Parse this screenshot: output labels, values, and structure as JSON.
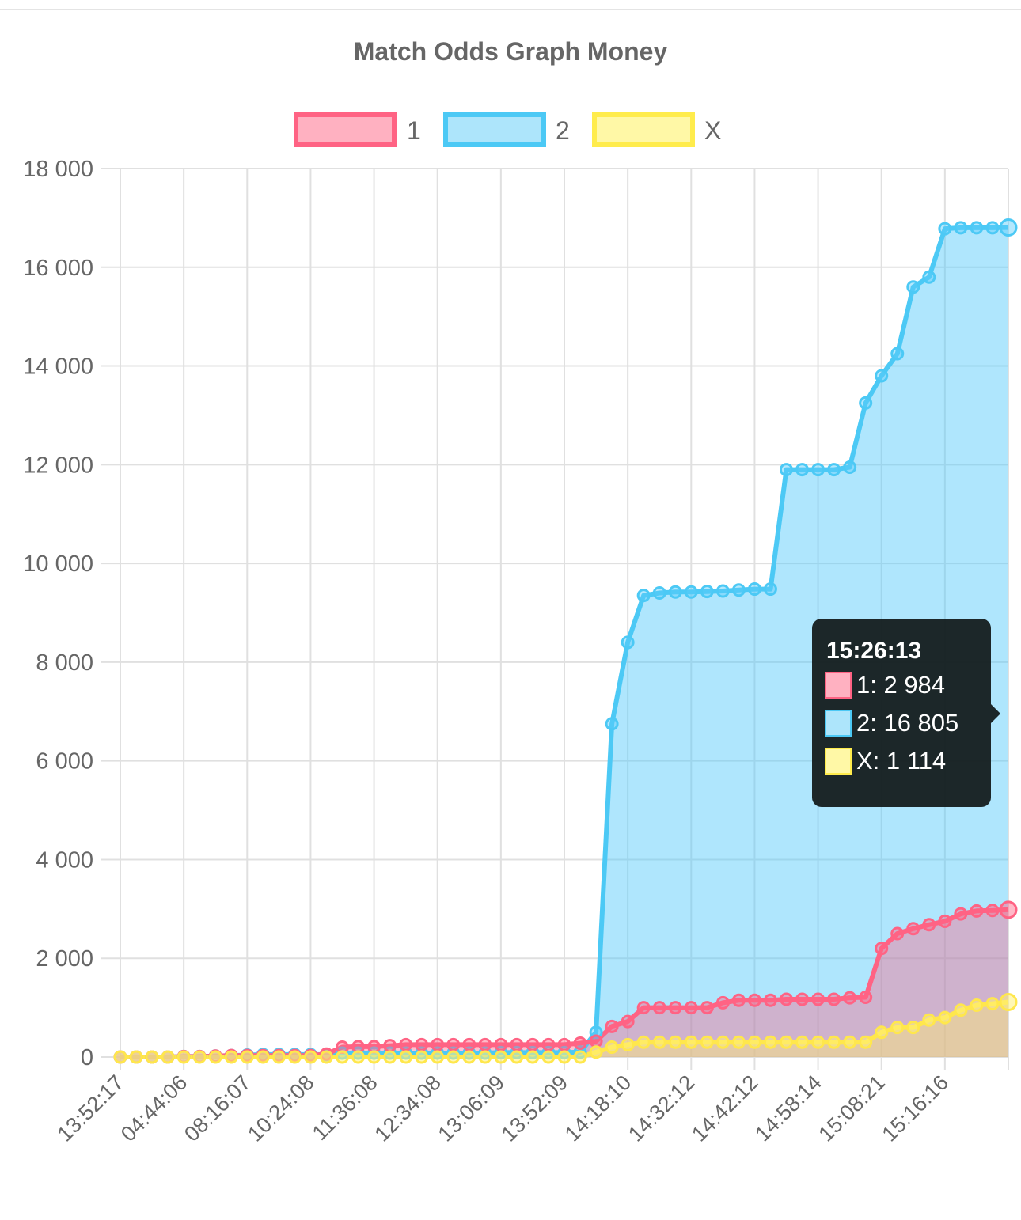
{
  "chart_data": {
    "type": "area",
    "title": "Match Odds Graph Money",
    "legend_position": "top-center",
    "grid": true,
    "ylim": [
      0,
      18000
    ],
    "y_ticks": [
      0,
      2000,
      4000,
      6000,
      8000,
      10000,
      12000,
      14000,
      16000,
      18000
    ],
    "y_tick_labels": [
      "0",
      "2 000",
      "4 000",
      "6 000",
      "8 000",
      "10 000",
      "12 000",
      "14 000",
      "16 000",
      "18 000"
    ],
    "x_tick_labels": [
      "13:52:17",
      "04:44:06",
      "08:16:07",
      "10:24:08",
      "11:36:08",
      "12:34:08",
      "13:06:09",
      "13:52:09",
      "14:18:10",
      "14:32:12",
      "14:42:12",
      "14:58:14",
      "15:08:21",
      "15:16:16"
    ],
    "point_count": 57,
    "series": [
      {
        "name": "1",
        "line_color": "#ff6384",
        "fill_color": "rgba(255, 99, 132, 0.45)",
        "values": [
          0,
          0,
          0,
          0,
          10,
          10,
          20,
          30,
          30,
          30,
          30,
          30,
          30,
          60,
          200,
          210,
          210,
          230,
          250,
          250,
          250,
          250,
          250,
          250,
          250,
          250,
          250,
          250,
          250,
          280,
          320,
          620,
          720,
          1000,
          1000,
          1000,
          1000,
          1000,
          1100,
          1150,
          1150,
          1150,
          1170,
          1170,
          1170,
          1170,
          1200,
          1210,
          2200,
          2500,
          2600,
          2680,
          2750,
          2900,
          2960,
          2970,
          2984
        ]
      },
      {
        "name": "2",
        "line_color": "#36a2eb",
        "fill_color": "rgba(54, 190, 250, 0.42)",
        "values": [
          0,
          0,
          0,
          0,
          10,
          10,
          20,
          30,
          40,
          50,
          50,
          50,
          50,
          50,
          80,
          80,
          80,
          80,
          80,
          80,
          80,
          80,
          80,
          80,
          90,
          90,
          90,
          90,
          90,
          100,
          500,
          6750,
          8400,
          9350,
          9400,
          9420,
          9420,
          9430,
          9440,
          9460,
          9480,
          9480,
          11900,
          11900,
          11900,
          11900,
          11950,
          13250,
          13800,
          14250,
          15600,
          15800,
          16780,
          16800,
          16800,
          16800,
          16805
        ]
      },
      {
        "name": "X",
        "line_color": "#ffe74c",
        "fill_color": "rgba(255, 240, 120, 0.45)",
        "values": [
          0,
          0,
          0,
          0,
          0,
          0,
          0,
          0,
          0,
          0,
          0,
          0,
          0,
          0,
          0,
          0,
          0,
          0,
          0,
          0,
          0,
          0,
          0,
          0,
          0,
          0,
          0,
          0,
          0,
          0,
          100,
          200,
          250,
          300,
          300,
          300,
          300,
          300,
          300,
          300,
          300,
          300,
          300,
          300,
          300,
          300,
          300,
          300,
          500,
          600,
          600,
          750,
          800,
          950,
          1050,
          1080,
          1114
        ]
      }
    ],
    "tooltip": {
      "title": "15:26:13",
      "rows": [
        {
          "text": "1: 2 984",
          "series": "1"
        },
        {
          "text": "2: 16 805",
          "series": "2"
        },
        {
          "text": "X: 1 114",
          "series": "X"
        }
      ]
    }
  },
  "legend": {
    "items": [
      {
        "label": "1",
        "swatch_fill": "#ffb1c1",
        "swatch_border": "#ff6384"
      },
      {
        "label": "2",
        "swatch_fill": "#9ad0f5",
        "swatch_border": "#36a2eb"
      },
      {
        "label": "X",
        "swatch_fill": "#fff5a3",
        "swatch_border": "#ffe74c"
      }
    ]
  },
  "colors": {
    "series_1_line": "#ff6384",
    "series_2_line": "#4cc9f5",
    "series_x_line": "#ffe74c",
    "grid": "#e0e0e0",
    "text": "#666666",
    "tooltip_bg": "#141c1e"
  }
}
